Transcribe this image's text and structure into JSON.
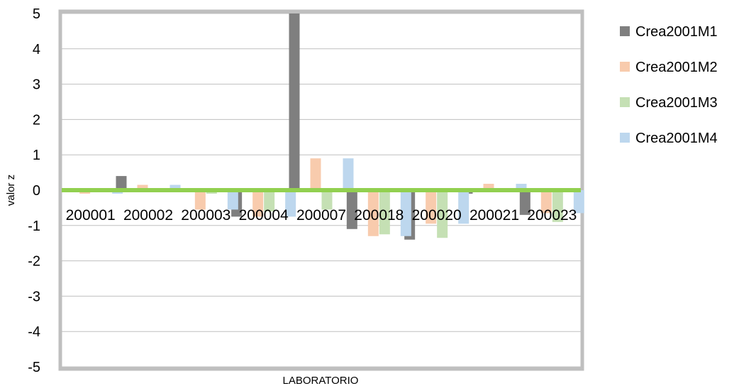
{
  "chart_data": {
    "type": "bar",
    "xlabel": "LABORATORIO",
    "ylabel": "valor z",
    "ylim": [
      -5,
      5
    ],
    "yticks": [
      "5",
      "4",
      "3",
      "2",
      "1",
      "0",
      "-1",
      "-2",
      "-3",
      "-4",
      "-5"
    ],
    "categories": [
      "200001",
      "200002",
      "200003",
      "200004",
      "200007",
      "200018",
      "200020",
      "200021",
      "200023"
    ],
    "series": [
      {
        "name": "Crea2001M1",
        "color": "#7f7f7f",
        "values": [
          0.0,
          0.4,
          -0.05,
          -0.75,
          5.0,
          -1.1,
          -1.4,
          -0.1,
          -0.7
        ]
      },
      {
        "name": "Crea2001M2",
        "color": "#f8cbad",
        "values": [
          -0.1,
          0.15,
          -0.55,
          -0.75,
          0.9,
          -1.3,
          -0.95,
          0.18,
          -0.65
        ]
      },
      {
        "name": "Crea2001M3",
        "color": "#c5e0b4",
        "values": [
          0.0,
          0.0,
          -0.1,
          -0.6,
          -0.55,
          -1.25,
          -1.35,
          0.0,
          -0.9
        ]
      },
      {
        "name": "Crea2001M4",
        "color": "#bdd7ee",
        "values": [
          -0.1,
          0.15,
          -0.55,
          -0.75,
          0.9,
          -1.3,
          -0.95,
          0.18,
          -0.65
        ]
      }
    ],
    "zero_line_color": "#92d050",
    "grid": true,
    "legend_position": "right"
  }
}
